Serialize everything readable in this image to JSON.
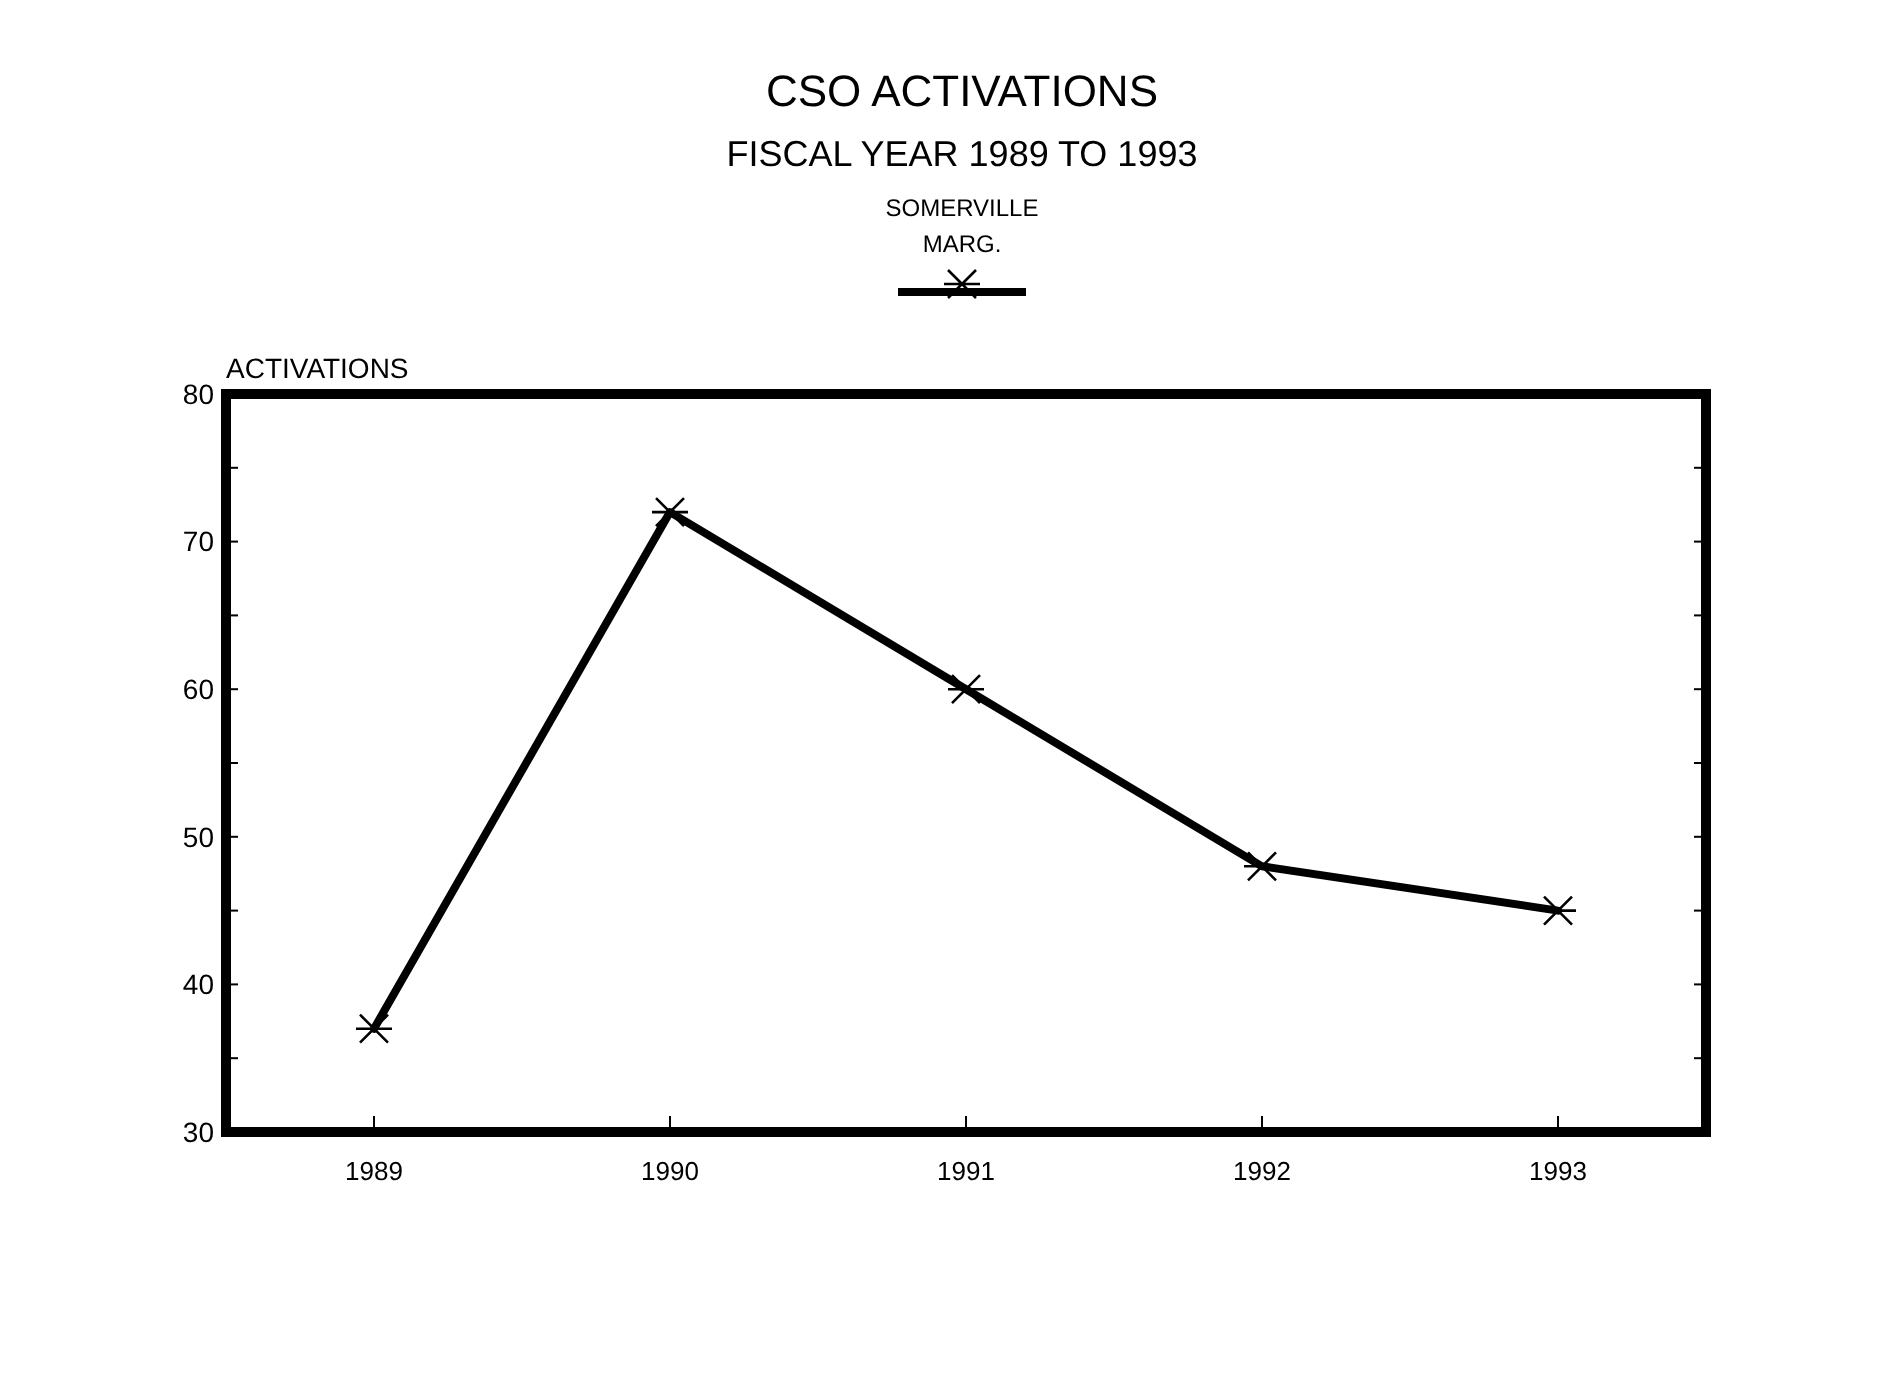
{
  "chart_data": {
    "type": "line",
    "title": "CSO ACTIVATIONS",
    "subtitle": "FISCAL YEAR 1989 TO 1993",
    "ylabel": "ACTIVATIONS",
    "categories": [
      "1989",
      "1990",
      "1991",
      "1992",
      "1993"
    ],
    "series": [
      {
        "name": "SOMERVILLE MARG.",
        "color": "#000000",
        "values": [
          37,
          72,
          60,
          48,
          45
        ]
      }
    ],
    "ylim": [
      30,
      80
    ],
    "yticks": [
      30,
      {
        "value": 35,
        "label": null
      },
      40,
      {
        "value": 45,
        "label": null
      },
      50,
      {
        "value": 55,
        "label": null
      },
      60,
      {
        "value": 65,
        "label": null
      },
      70,
      {
        "value": 75,
        "label": null
      },
      80
    ],
    "grid": false,
    "legend": "top",
    "marker": "cross",
    "line_style": "solid"
  }
}
